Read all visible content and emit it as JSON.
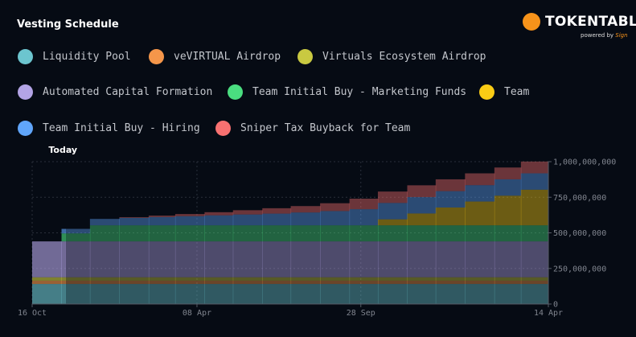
{
  "title": "Vesting Schedule",
  "logo": {
    "name": "TOKENTABLE",
    "powered_by": "powered by",
    "brand": "Sign"
  },
  "today_label": "Today",
  "chart_data": {
    "type": "area",
    "stacked": true,
    "step": true,
    "x_dates": [
      "2024-10-16",
      "2024-11-16",
      "2024-12-16",
      "2025-01-16",
      "2025-02-16",
      "2025-03-16",
      "2025-04-16",
      "2025-05-16",
      "2025-06-16",
      "2025-07-16",
      "2025-08-16",
      "2025-09-16",
      "2025-10-16",
      "2025-11-16",
      "2025-12-16",
      "2026-01-16",
      "2026-02-16",
      "2026-03-16",
      "2026-04-14"
    ],
    "today": "2024-11-20",
    "x_ticks": [
      {
        "date": "2024-10-16",
        "label": "16 Oct"
      },
      {
        "date": "2025-04-08",
        "label": "08 Apr"
      },
      {
        "date": "2025-09-28",
        "label": "28 Sep"
      },
      {
        "date": "2026-04-14",
        "label": "14 Apr"
      }
    ],
    "ylim": [
      0,
      1000000000
    ],
    "y_ticks": [
      {
        "value": 0,
        "label": "0"
      },
      {
        "value": 250000000,
        "label": "250,000,000"
      },
      {
        "value": 500000000,
        "label": "500,000,000"
      },
      {
        "value": 750000000,
        "label": "750,000,000"
      },
      {
        "value": 1000000000,
        "label": "1,000,000,000"
      }
    ],
    "grid": true,
    "legend_position": "top",
    "series": [
      {
        "name": "Liquidity Pool",
        "color": "#6cc5cf",
        "values": [
          141,
          141,
          141,
          141,
          141,
          141,
          141,
          141,
          141,
          141,
          141,
          141,
          141,
          141,
          141,
          141,
          141,
          141
        ]
      },
      {
        "name": "veVIRTUAL Airdrop",
        "color": "#f5964a",
        "values": [
          23,
          23,
          23,
          23,
          23,
          23,
          23,
          23,
          23,
          23,
          23,
          23,
          23,
          23,
          23,
          23,
          23,
          23
        ]
      },
      {
        "name": "Virtuals Ecosystem Airdrop",
        "color": "#c9c941",
        "values": [
          24,
          24,
          24,
          24,
          24,
          24,
          24,
          24,
          24,
          24,
          24,
          24,
          24,
          24,
          24,
          24,
          24,
          24
        ]
      },
      {
        "name": "Automated Capital Formation",
        "color": "#b3a4e6",
        "values": [
          252,
          252,
          252,
          252,
          252,
          252,
          252,
          252,
          252,
          252,
          252,
          252,
          252,
          252,
          252,
          252,
          252,
          252
        ]
      },
      {
        "name": "Team Initial Buy - Marketing Funds",
        "color": "#4ade80",
        "values": [
          0,
          56,
          113,
          113,
          113,
          113,
          113,
          113,
          113,
          113,
          113,
          113,
          113,
          113,
          113,
          113,
          113,
          113
        ]
      },
      {
        "name": "Team",
        "color": "#facc15",
        "values": [
          0,
          0,
          0,
          0,
          0,
          0,
          0,
          0,
          0,
          0,
          0,
          0,
          42,
          83,
          125,
          167,
          208,
          250
        ]
      },
      {
        "name": "Team Initial Buy - Hiring",
        "color": "#60a5fa",
        "values": [
          0,
          32,
          45,
          52,
          58,
          64,
          70,
          76,
          82,
          90,
          100,
          113,
          115,
          115,
          115,
          115,
          115,
          115
        ]
      },
      {
        "name": "Sniper Tax Buyback for Team",
        "color": "#f87171",
        "values": [
          0,
          0,
          0,
          5,
          10,
          15,
          22,
          30,
          38,
          45,
          55,
          74,
          80,
          83,
          83,
          83,
          83,
          83
        ]
      }
    ],
    "value_unit": "millions of tokens"
  }
}
